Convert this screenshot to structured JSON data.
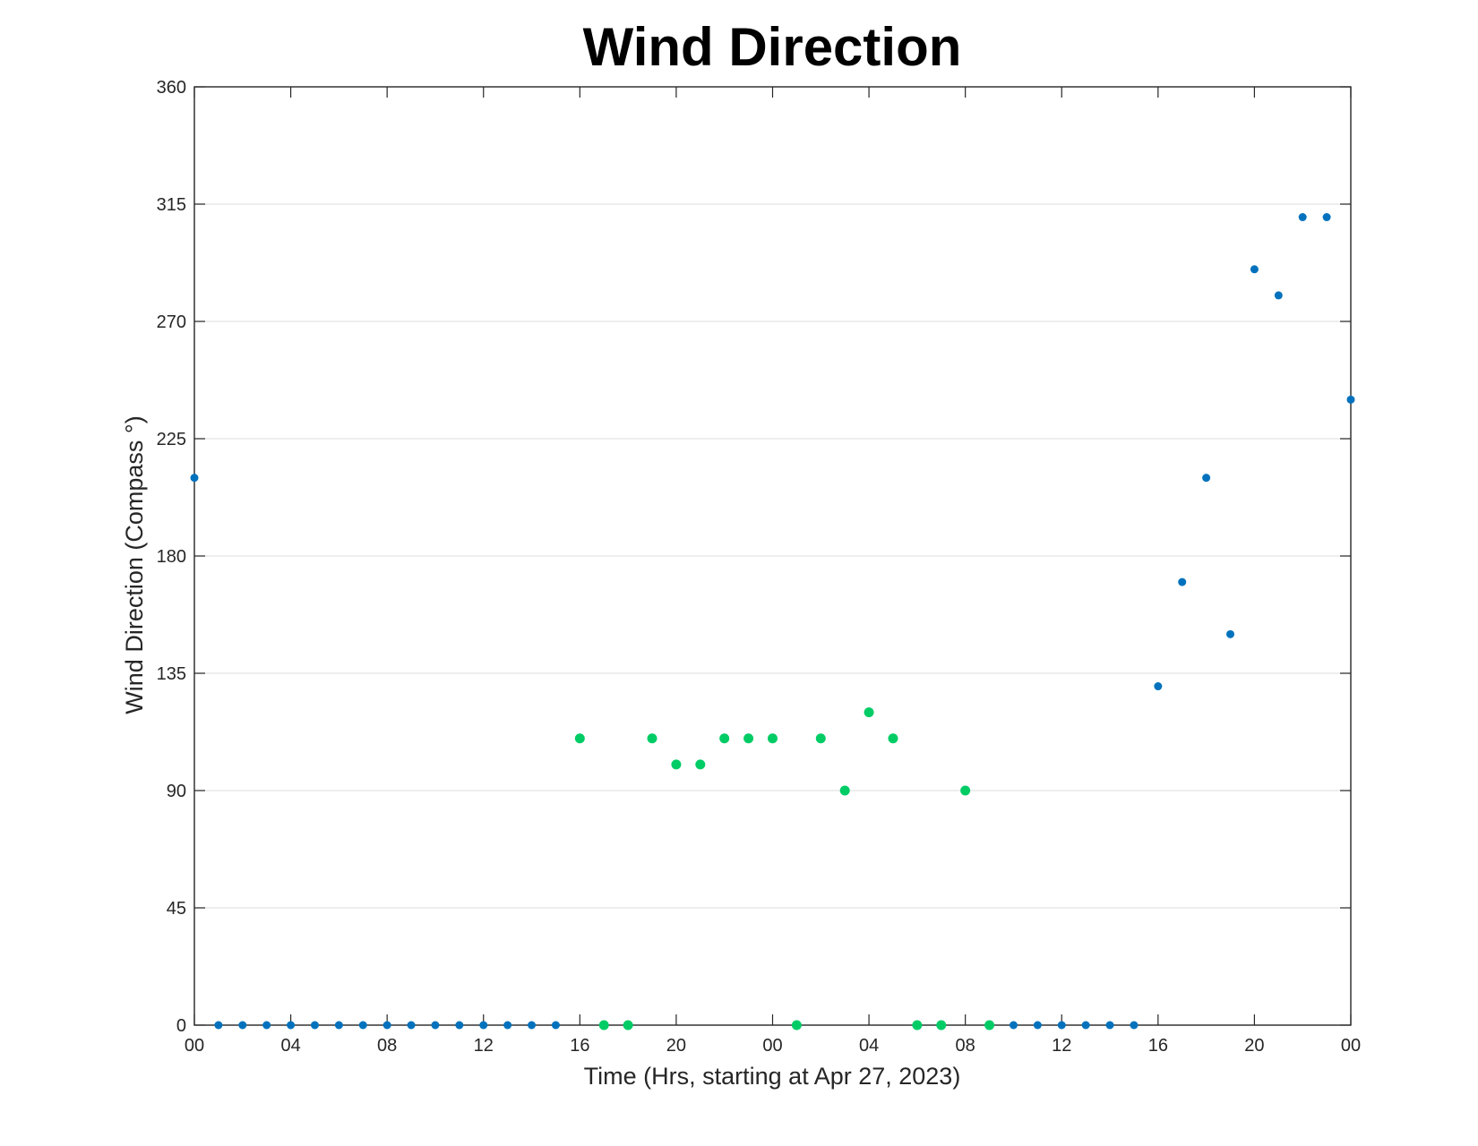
{
  "chart_data": {
    "type": "scatter",
    "title": "Wind Direction",
    "xlabel": "Time (Hrs, starting at Apr 27, 2023)",
    "ylabel": "Wind Direction (Compass °)",
    "xlim": [
      0,
      48
    ],
    "ylim": [
      0,
      360
    ],
    "x_ticks": [
      0,
      4,
      8,
      12,
      16,
      20,
      24,
      28,
      32,
      36,
      40,
      44,
      48
    ],
    "x_tick_labels": [
      "00",
      "04",
      "08",
      "12",
      "16",
      "20",
      "00",
      "04",
      "08",
      "12",
      "16",
      "20",
      "00"
    ],
    "y_ticks": [
      0,
      45,
      90,
      135,
      180,
      225,
      270,
      315,
      360
    ],
    "y_tick_labels": [
      "0",
      "45",
      "90",
      "135",
      "180",
      "225",
      "270",
      "315",
      "360"
    ],
    "grid": "horizontal",
    "colors": {
      "blue": "#0072bd",
      "green": "#00cc66",
      "grid": "#e3e3e3",
      "axis": "#262626"
    },
    "series": [
      {
        "color_key": "blue",
        "points": [
          [
            0,
            210
          ],
          [
            1,
            0
          ],
          [
            2,
            0
          ],
          [
            3,
            0
          ],
          [
            4,
            0
          ],
          [
            5,
            0
          ],
          [
            6,
            0
          ],
          [
            7,
            0
          ],
          [
            8,
            0
          ],
          [
            9,
            0
          ],
          [
            10,
            0
          ],
          [
            11,
            0
          ],
          [
            12,
            0
          ],
          [
            13,
            0
          ],
          [
            14,
            0
          ],
          [
            15,
            0
          ],
          [
            34,
            0
          ],
          [
            35,
            0
          ],
          [
            36,
            0
          ],
          [
            37,
            0
          ],
          [
            38,
            0
          ],
          [
            39,
            0
          ],
          [
            40,
            130
          ],
          [
            41,
            170
          ],
          [
            42,
            210
          ],
          [
            43,
            150
          ],
          [
            44,
            290
          ],
          [
            45,
            280
          ],
          [
            46,
            310
          ],
          [
            47,
            310
          ],
          [
            48,
            240
          ]
        ]
      },
      {
        "color_key": "green",
        "points": [
          [
            16,
            110
          ],
          [
            17,
            0
          ],
          [
            18,
            0
          ],
          [
            19,
            110
          ],
          [
            20,
            100
          ],
          [
            21,
            100
          ],
          [
            22,
            110
          ],
          [
            23,
            110
          ],
          [
            24,
            110
          ],
          [
            25,
            0
          ],
          [
            26,
            110
          ],
          [
            27,
            90
          ],
          [
            28,
            120
          ],
          [
            29,
            110
          ],
          [
            30,
            0
          ],
          [
            31,
            0
          ],
          [
            32,
            90
          ],
          [
            33,
            0
          ]
        ]
      }
    ]
  }
}
